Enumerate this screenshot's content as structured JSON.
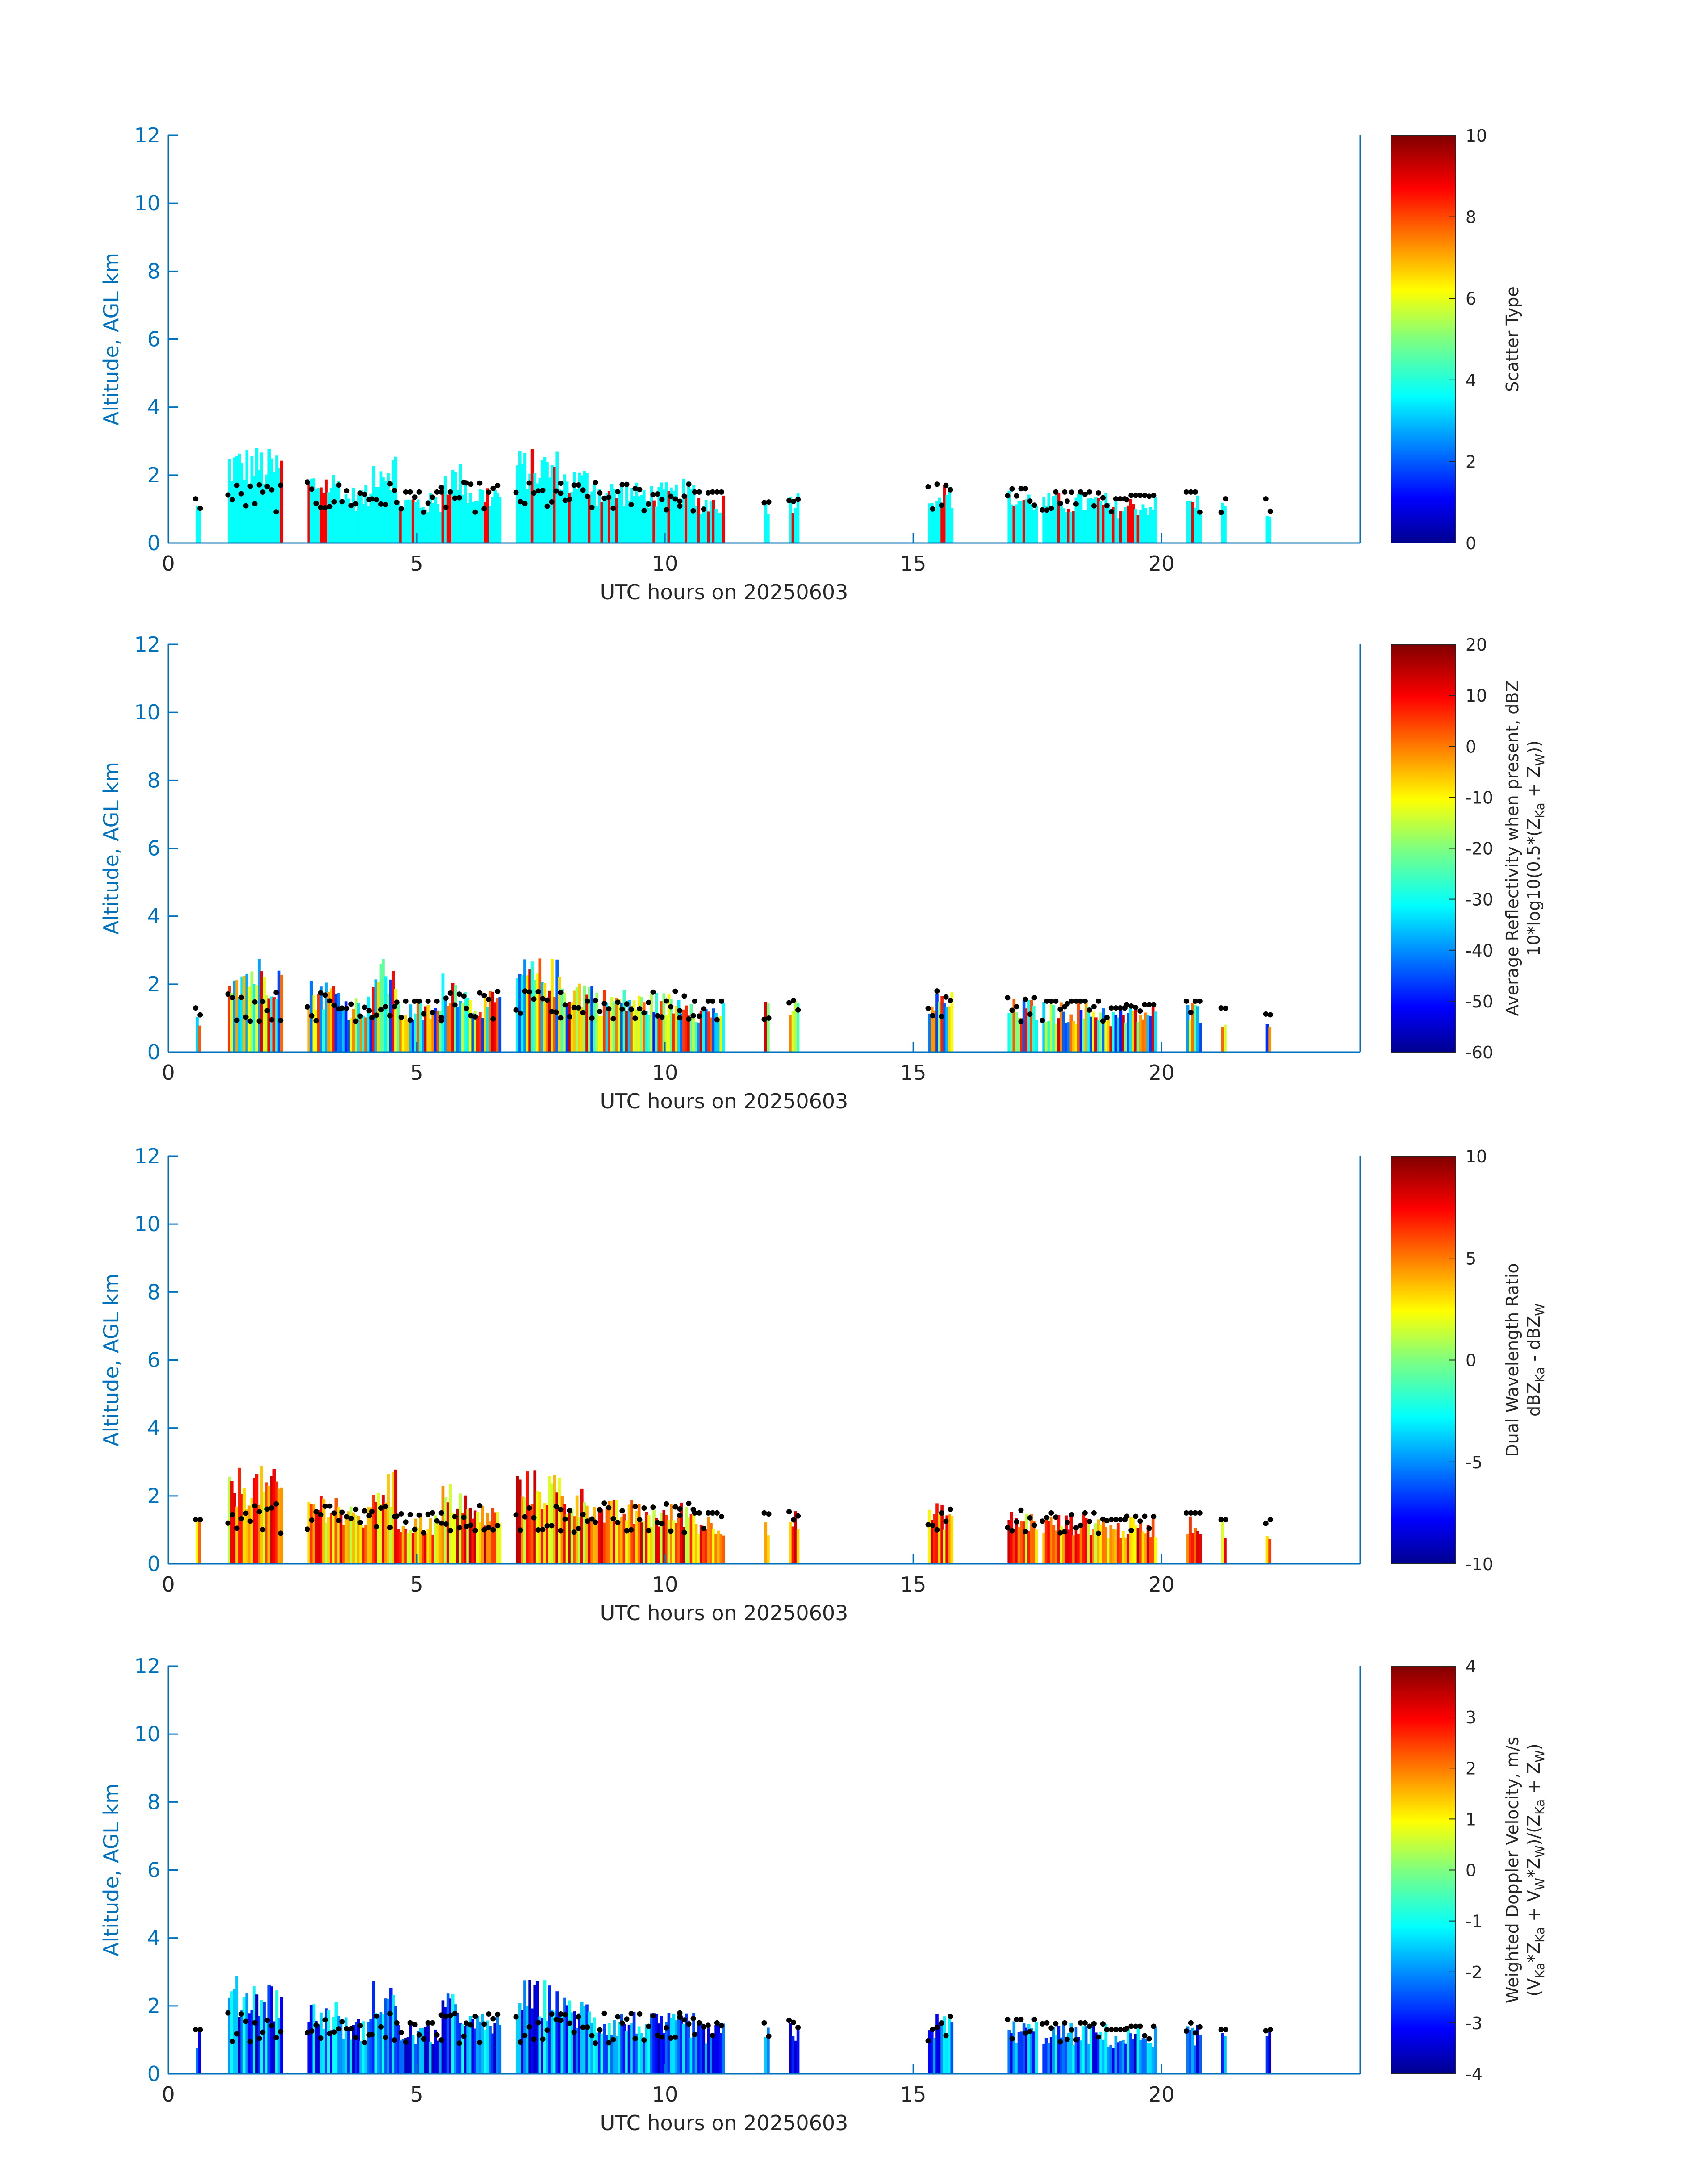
{
  "figure": {
    "date": "20250603",
    "colors": {
      "axis": "#0072BD",
      "text": "#262626",
      "dots": "#000000"
    }
  },
  "chart_data": [
    {
      "type": "heatmap",
      "xlabel": "UTC hours on 20250603",
      "ylabel": "Altitude, AGL km",
      "xlim": [
        0,
        24
      ],
      "ylim": [
        0,
        12
      ],
      "xticks": [
        "0",
        "5",
        "10",
        "15",
        "20"
      ],
      "yticks": [
        "0",
        "2",
        "4",
        "6",
        "8",
        "10",
        "12"
      ],
      "colorbar": {
        "label": [
          "Scatter Type"
        ],
        "ticks": [
          "0",
          "2",
          "4",
          "6",
          "8",
          "10"
        ],
        "range": [
          0,
          10
        ]
      },
      "grid": false
    },
    {
      "type": "heatmap",
      "xlabel": "UTC hours on 20250603",
      "ylabel": "Altitude, AGL km",
      "xlim": [
        0,
        24
      ],
      "ylim": [
        0,
        12
      ],
      "xticks": [
        "0",
        "5",
        "10",
        "15",
        "20"
      ],
      "yticks": [
        "0",
        "2",
        "4",
        "6",
        "8",
        "10",
        "12"
      ],
      "colorbar": {
        "label": [
          "Average Reflectivity when present, dBZ",
          "10*log10(0.5*(Z_Ka + Z_W))"
        ],
        "ticks": [
          "-60",
          "-50",
          "-40",
          "-30",
          "-20",
          "-10",
          "0",
          "10",
          "20"
        ],
        "range": [
          -60,
          20
        ]
      },
      "grid": false
    },
    {
      "type": "heatmap",
      "xlabel": "UTC hours on 20250603",
      "ylabel": "Altitude, AGL km",
      "xlim": [
        0,
        24
      ],
      "ylim": [
        0,
        12
      ],
      "xticks": [
        "0",
        "5",
        "10",
        "15",
        "20"
      ],
      "yticks": [
        "0",
        "2",
        "4",
        "6",
        "8",
        "10",
        "12"
      ],
      "colorbar": {
        "label": [
          "Dual Wavelength Ratio",
          "dBZ_Ka - dBZ_W"
        ],
        "ticks": [
          "-10",
          "-5",
          "0",
          "5",
          "10"
        ],
        "range": [
          -10,
          10
        ]
      },
      "grid": false
    },
    {
      "type": "heatmap",
      "xlabel": "UTC hours on 20250603",
      "ylabel": "Altitude, AGL km",
      "xlim": [
        0,
        24
      ],
      "ylim": [
        0,
        12
      ],
      "xticks": [
        "0",
        "5",
        "10",
        "15",
        "20"
      ],
      "yticks": [
        "0",
        "2",
        "4",
        "6",
        "8",
        "10",
        "12"
      ],
      "colorbar": {
        "label": [
          "Weighted Doppler Velocity, m/s",
          "(V_Ka*Z_Ka + V_W*Z_W)/(Z_Ka + Z_W)"
        ],
        "ticks": [
          "-4",
          "-3",
          "-2",
          "-1",
          "0",
          "1",
          "2",
          "3",
          "4"
        ],
        "range": [
          -4,
          4
        ]
      },
      "grid": false
    }
  ]
}
